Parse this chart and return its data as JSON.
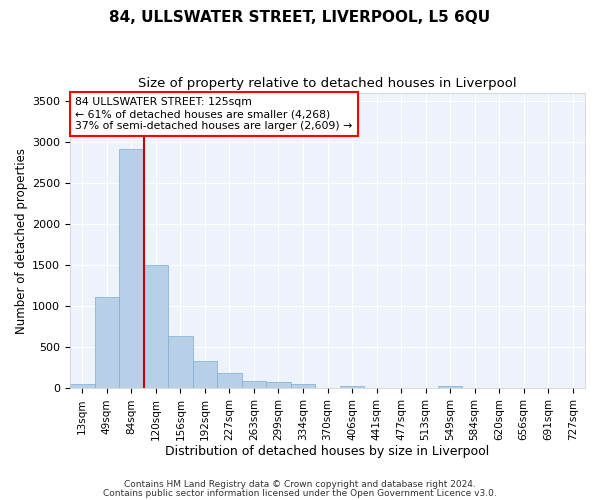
{
  "title1": "84, ULLSWATER STREET, LIVERPOOL, L5 6QU",
  "title2": "Size of property relative to detached houses in Liverpool",
  "xlabel": "Distribution of detached houses by size in Liverpool",
  "ylabel": "Number of detached properties",
  "categories": [
    "13sqm",
    "49sqm",
    "84sqm",
    "120sqm",
    "156sqm",
    "192sqm",
    "227sqm",
    "263sqm",
    "299sqm",
    "334sqm",
    "370sqm",
    "406sqm",
    "441sqm",
    "477sqm",
    "513sqm",
    "549sqm",
    "584sqm",
    "620sqm",
    "656sqm",
    "691sqm",
    "727sqm"
  ],
  "values": [
    55,
    1110,
    2920,
    1510,
    640,
    340,
    190,
    90,
    80,
    50,
    5,
    35,
    5,
    5,
    5,
    25,
    5,
    5,
    5,
    5,
    5
  ],
  "bar_color": "#b8cfe8",
  "bar_edgecolor": "#7aadd4",
  "red_line_x": 2.5,
  "red_line_color": "#cc0000",
  "annotation_line1": "84 ULLSWATER STREET: 125sqm",
  "annotation_line2": "← 61% of detached houses are smaller (4,268)",
  "annotation_line3": "37% of semi-detached houses are larger (2,609) →",
  "ylim": [
    0,
    3600
  ],
  "yticks": [
    0,
    500,
    1000,
    1500,
    2000,
    2500,
    3000,
    3500
  ],
  "background_color": "#eef2fb",
  "grid_color": "#ffffff",
  "footer1": "Contains HM Land Registry data © Crown copyright and database right 2024.",
  "footer2": "Contains public sector information licensed under the Open Government Licence v3.0."
}
